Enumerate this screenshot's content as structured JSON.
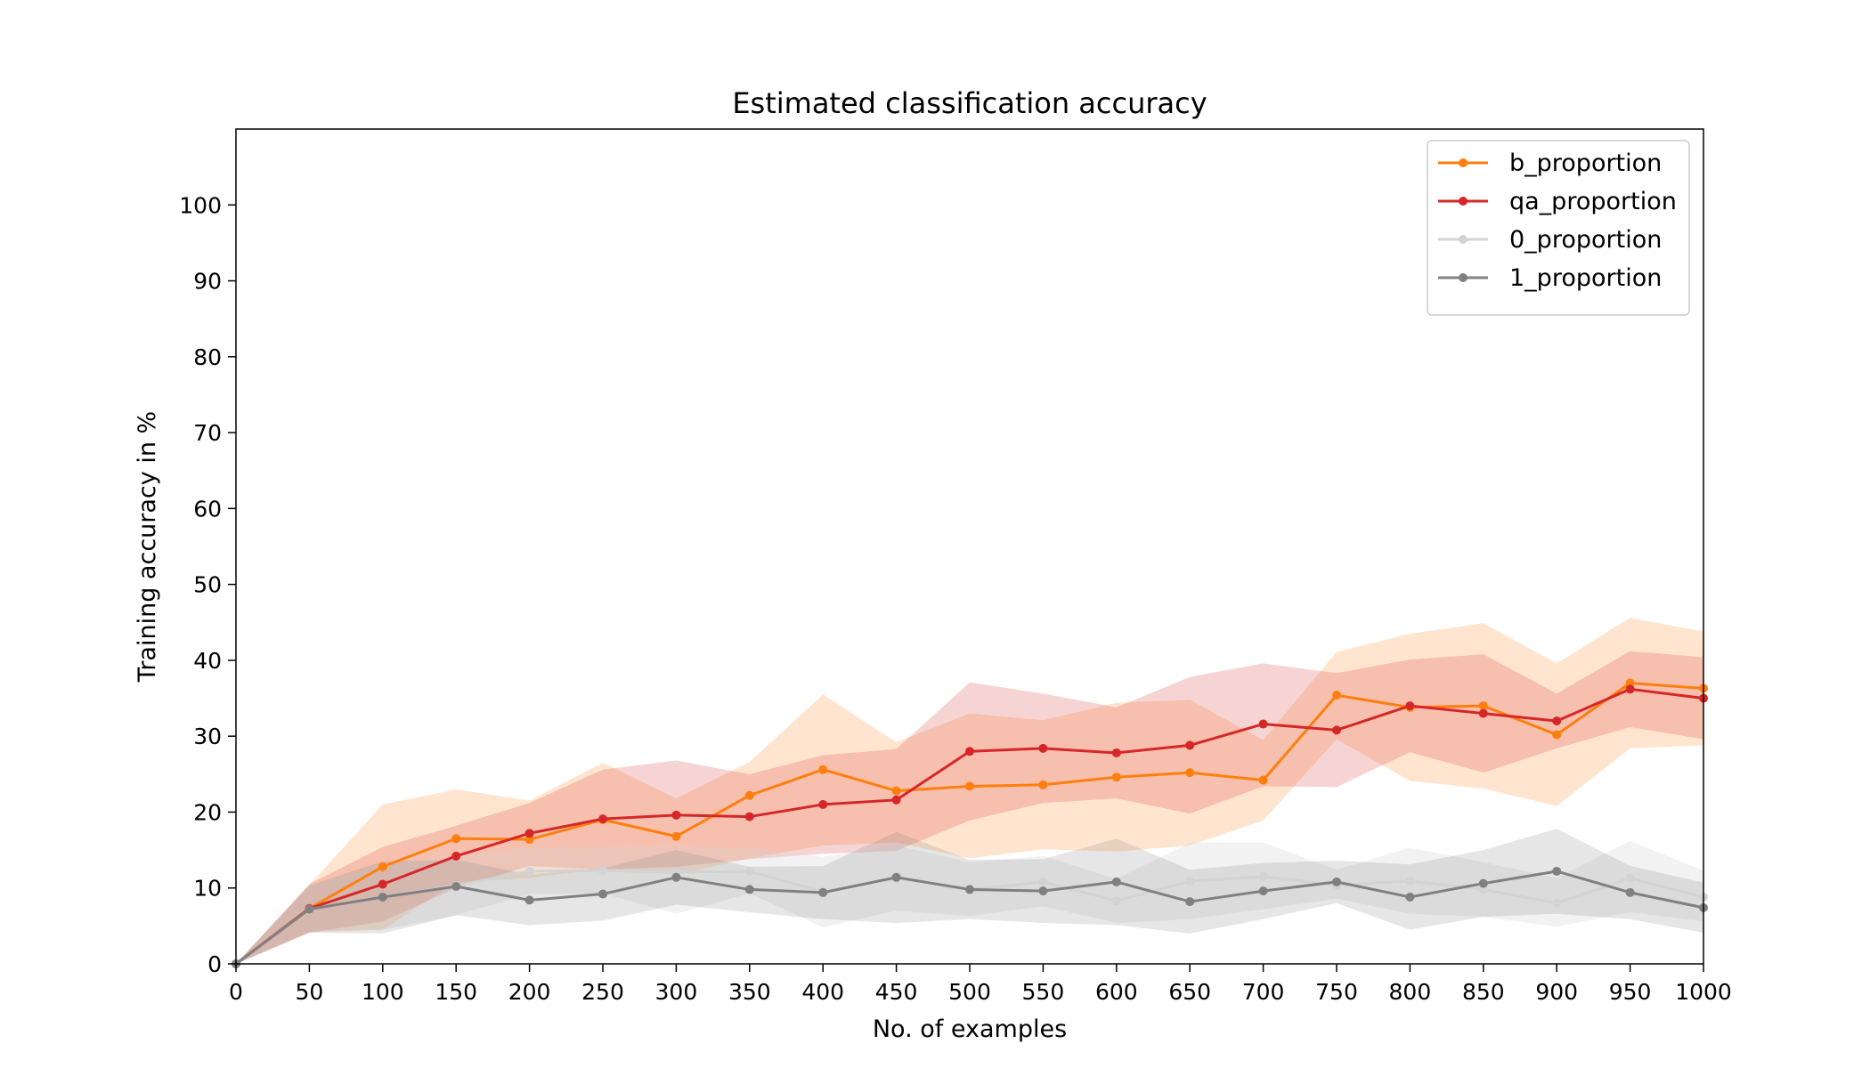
{
  "chart_data": {
    "type": "line",
    "title": "Estimated classification accuracy",
    "xlabel": "No. of examples",
    "ylabel": "Training accuracy in %",
    "xlim": [
      0,
      1000
    ],
    "ylim": [
      0,
      110
    ],
    "xticks": [
      0,
      50,
      100,
      150,
      200,
      250,
      300,
      350,
      400,
      450,
      500,
      550,
      600,
      650,
      700,
      750,
      800,
      850,
      900,
      950,
      1000
    ],
    "yticks": [
      0,
      10,
      20,
      30,
      40,
      50,
      60,
      70,
      80,
      90,
      100
    ],
    "grid": false,
    "legend_position": "top-right",
    "x": [
      0,
      50,
      100,
      150,
      200,
      250,
      300,
      350,
      400,
      450,
      500,
      550,
      600,
      650,
      700,
      750,
      800,
      850,
      900,
      950,
      1000
    ],
    "series": [
      {
        "name": "b_proportion",
        "color": "#ff7f0e",
        "band_opacity": 0.2,
        "values": [
          0,
          7.3,
          12.8,
          16.5,
          16.4,
          19.0,
          16.8,
          22.2,
          25.6,
          22.8,
          23.4,
          23.6,
          24.6,
          25.2,
          24.2,
          35.4,
          33.8,
          34.0,
          30.2,
          37.0,
          36.3
        ],
        "lower": [
          0,
          4.2,
          4.5,
          10.8,
          11.3,
          12.6,
          11.8,
          13.9,
          15.6,
          16.0,
          13.9,
          15.1,
          14.8,
          15.6,
          18.9,
          29.6,
          24.1,
          23.1,
          20.8,
          28.4,
          28.8
        ],
        "upper": [
          0,
          10.4,
          21.0,
          23.0,
          21.5,
          26.5,
          21.8,
          26.6,
          35.5,
          29.2,
          33.0,
          32.1,
          34.4,
          34.8,
          29.5,
          41.1,
          43.5,
          44.9,
          39.6,
          45.6,
          43.8
        ]
      },
      {
        "name": "qa_proportion",
        "color": "#d62728",
        "band_opacity": 0.2,
        "values": [
          0,
          7.3,
          10.5,
          14.2,
          17.2,
          19.1,
          19.6,
          19.4,
          21.0,
          21.6,
          28.0,
          28.4,
          27.8,
          28.8,
          31.6,
          30.8,
          34.0,
          33.0,
          32.0,
          36.2,
          35.0
        ],
        "lower": [
          0,
          4.1,
          5.6,
          10.0,
          12.9,
          12.4,
          12.8,
          13.8,
          14.5,
          14.9,
          18.9,
          21.2,
          21.8,
          19.8,
          23.4,
          23.3,
          27.9,
          25.2,
          28.4,
          31.2,
          29.6
        ],
        "upper": [
          0,
          10.5,
          15.4,
          18.2,
          21.2,
          25.6,
          26.8,
          25.0,
          27.5,
          28.3,
          37.1,
          35.6,
          33.8,
          37.8,
          39.6,
          38.3,
          40.1,
          40.8,
          35.6,
          41.2,
          40.4
        ]
      },
      {
        "name": "0_proportion",
        "color": "#d3d3d3",
        "band_opacity": 0.3,
        "values": [
          0,
          7.2,
          8.8,
          10.3,
          12.2,
          12.3,
          12.1,
          12.2,
          9.5,
          11.3,
          9.8,
          10.8,
          8.3,
          10.9,
          11.5,
          10.4,
          10.9,
          9.8,
          8.0,
          11.3,
          8.8
        ],
        "lower": [
          0,
          4.3,
          4.5,
          6.4,
          9.2,
          9.3,
          6.6,
          9.3,
          4.8,
          7.0,
          6.3,
          7.6,
          5.4,
          5.9,
          7.2,
          8.6,
          6.6,
          6.2,
          4.9,
          6.8,
          5.6
        ],
        "upper": [
          0,
          10.3,
          13.2,
          14.3,
          15.3,
          15.5,
          15.6,
          15.3,
          14.1,
          15.6,
          13.4,
          14.2,
          11.2,
          16.0,
          16.0,
          12.4,
          15.3,
          13.4,
          11.3,
          16.2,
          12.3
        ]
      },
      {
        "name": "1_proportion",
        "color": "#808080",
        "band_opacity": 0.2,
        "values": [
          0,
          7.2,
          8.8,
          10.2,
          8.4,
          9.2,
          11.4,
          9.8,
          9.4,
          11.4,
          9.8,
          9.6,
          10.8,
          8.2,
          9.6,
          10.8,
          8.8,
          10.6,
          12.2,
          9.4,
          7.4
        ],
        "lower": [
          0,
          4.1,
          4.0,
          6.4,
          5.1,
          5.7,
          7.8,
          6.8,
          5.9,
          5.4,
          5.9,
          5.4,
          5.1,
          4.0,
          5.9,
          8.0,
          4.5,
          6.2,
          6.6,
          5.9,
          4.1
        ],
        "upper": [
          0,
          10.3,
          13.5,
          13.7,
          11.8,
          12.6,
          15.0,
          12.8,
          12.9,
          17.4,
          13.7,
          13.8,
          16.5,
          12.4,
          13.3,
          13.6,
          13.1,
          15.0,
          17.8,
          12.9,
          10.7
        ]
      }
    ]
  }
}
